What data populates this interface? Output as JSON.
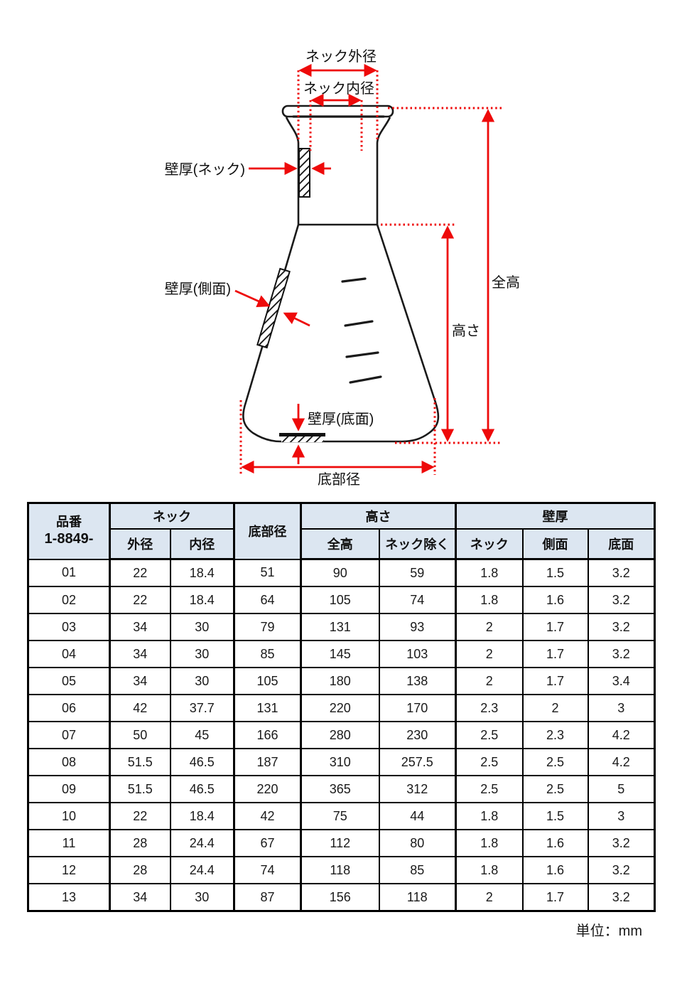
{
  "diagram": {
    "labels": {
      "neck_outer_dia": "ネック外径",
      "neck_inner_dia": "ネック内径",
      "wall_neck": "壁厚(ネック)",
      "wall_side": "壁厚(側面)",
      "wall_bottom": "壁厚(底面)",
      "total_height": "全高",
      "height": "高さ",
      "bottom_dia": "底部径"
    }
  },
  "table": {
    "header": {
      "part_no_line1": "品番",
      "part_no_line2": "1-8849-",
      "neck_group": "ネック",
      "outer_dia": "外径",
      "inner_dia": "内径",
      "bottom_dia": "底部径",
      "height_group": "高さ",
      "total_height": "全高",
      "excl_neck": "ネック除く",
      "wall_group": "壁厚",
      "wall_neck": "ネック",
      "wall_side": "側面",
      "wall_bottom": "底面"
    },
    "rows": [
      [
        "01",
        "22",
        "18.4",
        "51",
        "90",
        "59",
        "1.8",
        "1.5",
        "3.2"
      ],
      [
        "02",
        "22",
        "18.4",
        "64",
        "105",
        "74",
        "1.8",
        "1.6",
        "3.2"
      ],
      [
        "03",
        "34",
        "30",
        "79",
        "131",
        "93",
        "2",
        "1.7",
        "3.2"
      ],
      [
        "04",
        "34",
        "30",
        "85",
        "145",
        "103",
        "2",
        "1.7",
        "3.2"
      ],
      [
        "05",
        "34",
        "30",
        "105",
        "180",
        "138",
        "2",
        "1.7",
        "3.4"
      ],
      [
        "06",
        "42",
        "37.7",
        "131",
        "220",
        "170",
        "2.3",
        "2",
        "3"
      ],
      [
        "07",
        "50",
        "45",
        "166",
        "280",
        "230",
        "2.5",
        "2.3",
        "4.2"
      ],
      [
        "08",
        "51.5",
        "46.5",
        "187",
        "310",
        "257.5",
        "2.5",
        "2.5",
        "4.2"
      ],
      [
        "09",
        "51.5",
        "46.5",
        "220",
        "365",
        "312",
        "2.5",
        "2.5",
        "5"
      ],
      [
        "10",
        "22",
        "18.4",
        "42",
        "75",
        "44",
        "1.8",
        "1.5",
        "3"
      ],
      [
        "11",
        "28",
        "24.4",
        "67",
        "112",
        "80",
        "1.8",
        "1.6",
        "3.2"
      ],
      [
        "12",
        "28",
        "24.4",
        "74",
        "118",
        "85",
        "1.8",
        "1.6",
        "3.2"
      ],
      [
        "13",
        "34",
        "30",
        "87",
        "156",
        "118",
        "2",
        "1.7",
        "3.2"
      ]
    ]
  },
  "footer": {
    "unit_note": "単位：mm"
  },
  "colors": {
    "accent_red": "#ee0a0a",
    "header_bg": "#dce6f1",
    "line_black": "#1a1a1a"
  }
}
